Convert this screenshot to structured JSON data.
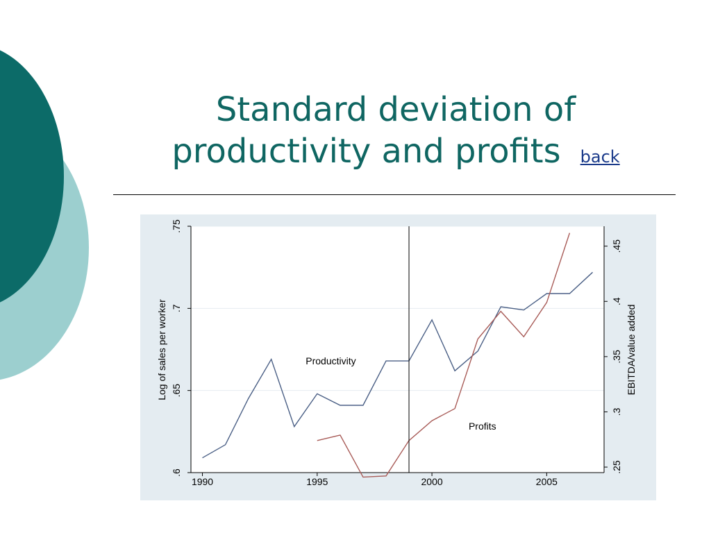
{
  "slide": {
    "title_line1": "Standard deviation of",
    "title_line2": "productivity and profits",
    "back_link": "back",
    "colors": {
      "title": "#0f6662",
      "circle_dark": "#0c6b68",
      "circle_light": "#9ccfcf",
      "chart_background": "#e4ecf1"
    }
  },
  "chart_data": {
    "type": "line",
    "ylabel": "Log of sales per worker",
    "y2label": "EBITDA/value added",
    "xlim": [
      1989.5,
      2007.5
    ],
    "ylim": [
      0.6,
      0.75
    ],
    "y2lim": [
      0.245,
      0.468
    ],
    "x_ticks": [
      1990,
      1995,
      2000,
      2005
    ],
    "x_tick_labels": [
      "1990",
      "1995",
      "2000",
      "2005"
    ],
    "y_ticks": [
      0.6,
      0.65,
      0.7,
      0.75
    ],
    "y_tick_labels": [
      ".6",
      ".65",
      ".7",
      ".75"
    ],
    "y2_ticks": [
      0.25,
      0.3,
      0.35,
      0.4,
      0.45
    ],
    "y2_tick_labels": [
      ".25",
      ".3",
      ".35",
      ".4",
      ".45"
    ],
    "vertical_line_x": 1999,
    "series": [
      {
        "name": "Productivity",
        "axis": "left",
        "color": "#4a5f85",
        "x": [
          1990,
          1991,
          1992,
          1993,
          1994,
          1995,
          1996,
          1997,
          1998,
          1999,
          2000,
          2001,
          2002,
          2003,
          2004,
          2005,
          2006,
          2007
        ],
        "values": [
          0.609,
          0.617,
          0.645,
          0.669,
          0.628,
          0.648,
          0.641,
          0.641,
          0.668,
          0.668,
          0.693,
          0.662,
          0.674,
          0.701,
          0.699,
          0.709,
          0.709,
          0.722
        ]
      },
      {
        "name": "Profits",
        "axis": "right",
        "color": "#a85b57",
        "x": [
          1995,
          1996,
          1997,
          1998,
          1999,
          2000,
          2001,
          2002,
          2003,
          2004,
          2005,
          2006
        ],
        "values": [
          0.274,
          0.279,
          0.241,
          0.242,
          0.274,
          0.292,
          0.303,
          0.366,
          0.391,
          0.368,
          0.399,
          0.462
        ]
      }
    ],
    "annotations": [
      {
        "text": "Productivity",
        "x": 1994.5,
        "y": 0.666,
        "axis": "left"
      },
      {
        "text": "Profits",
        "x": 2001.6,
        "y": 0.284,
        "axis": "right"
      }
    ],
    "grid": true
  }
}
